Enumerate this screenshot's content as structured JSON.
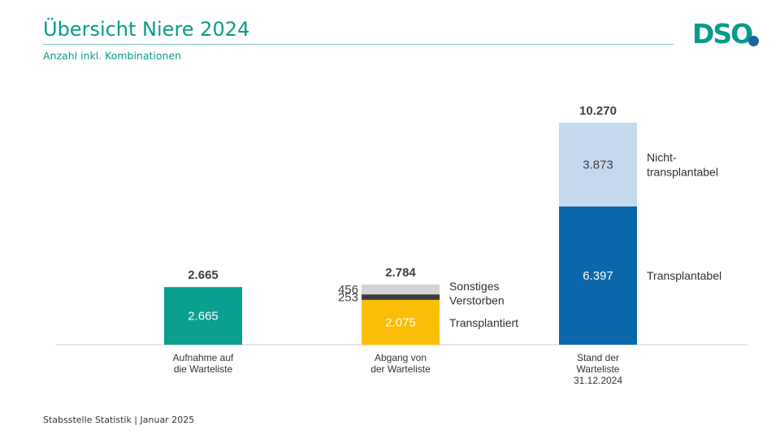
{
  "header": {
    "title": "Übersicht Niere 2024",
    "subtitle": "Anzahl inkl. Kombinationen",
    "logo_text": "DSO"
  },
  "footer": {
    "text": "Stabsstelle Statistik | Januar 2025"
  },
  "colors": {
    "accent": "#0a9a8a",
    "aufnahme": "#0a9f8f",
    "transplantiert": "#fbbd05",
    "verstorben": "#3b3b3b",
    "sonstiges": "#d3d3d3",
    "transplantabel": "#0c67aa",
    "nicht_transplantabel": "#c5d9ee",
    "logo_dot": "#1a63a8"
  },
  "chart_data": {
    "type": "bar",
    "stacked": true,
    "categories": [
      {
        "line1": "Aufnahme auf",
        "line2": "die Warteliste",
        "line3": ""
      },
      {
        "line1": "Abgang von",
        "line2": "der Warteliste",
        "line3": ""
      },
      {
        "line1": "Stand der",
        "line2": "Warteliste",
        "line3": "31.12.2024"
      }
    ],
    "totals": [
      "2.665",
      "2.784",
      "10.270"
    ],
    "total_values": [
      2665,
      2784,
      10270
    ],
    "bars": [
      [
        {
          "key": "aufnahme",
          "value": 2665,
          "label": "2.665",
          "legend_line1": "",
          "legend_line2": ""
        }
      ],
      [
        {
          "key": "transplantiert",
          "value": 2075,
          "label": "2.075",
          "legend_line1": "Transplantiert",
          "legend_line2": ""
        },
        {
          "key": "verstorben",
          "value": 253,
          "label": "253",
          "legend_line1": "Verstorben",
          "legend_line2": ""
        },
        {
          "key": "sonstiges",
          "value": 456,
          "label": "456",
          "legend_line1": "Sonstiges",
          "legend_line2": ""
        }
      ],
      [
        {
          "key": "transplantabel",
          "value": 6397,
          "label": "6.397",
          "legend_line1": "Transplantabel",
          "legend_line2": ""
        },
        {
          "key": "nicht_transplantabel",
          "value": 3873,
          "label": "3.873",
          "legend_line1": "Nicht-",
          "legend_line2": "transplantabel"
        }
      ]
    ],
    "ylim": [
      0,
      10270
    ],
    "grid": false
  }
}
